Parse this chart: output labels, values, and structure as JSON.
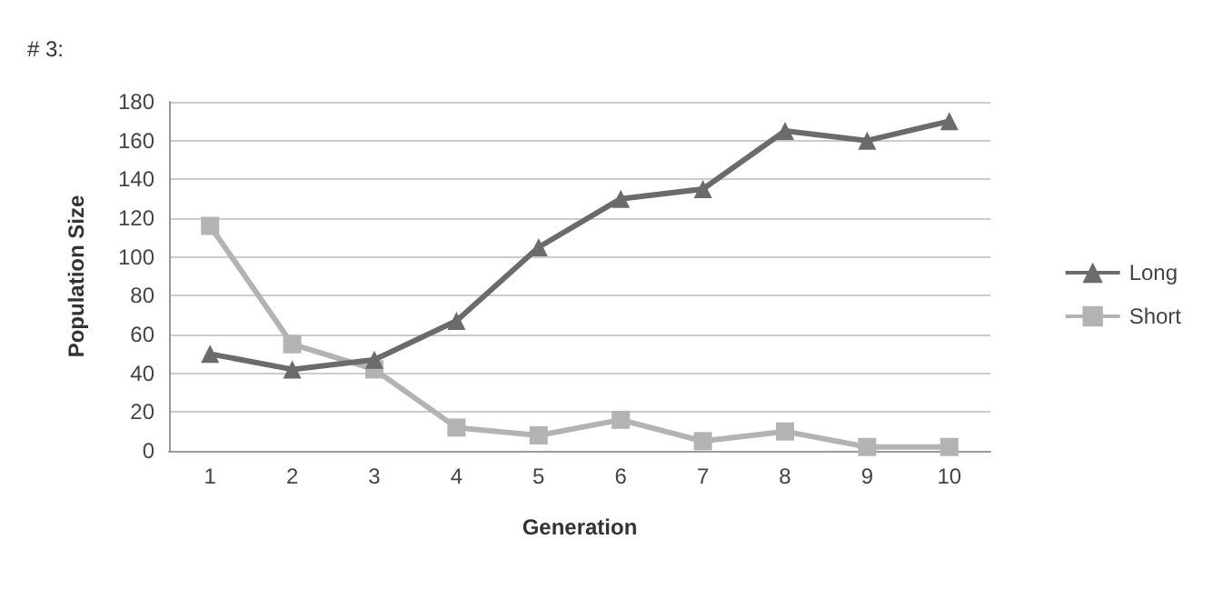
{
  "chart_data": {
    "type": "line",
    "title": "# 3:",
    "xlabel": "Generation",
    "ylabel": "Population Size",
    "categories": [
      "1",
      "2",
      "3",
      "4",
      "5",
      "6",
      "7",
      "8",
      "9",
      "10"
    ],
    "series": [
      {
        "name": "Long",
        "color": "#6b6b6b",
        "marker": "triangle",
        "values": [
          50,
          42,
          47,
          67,
          105,
          130,
          135,
          165,
          160,
          170
        ]
      },
      {
        "name": "Short",
        "color": "#b3b3b3",
        "marker": "square",
        "values": [
          116,
          55,
          42,
          12,
          8,
          16,
          5,
          10,
          2,
          2
        ]
      }
    ],
    "ylim": [
      0,
      180
    ],
    "yticks": [
      0,
      20,
      40,
      60,
      80,
      100,
      120,
      140,
      160,
      180
    ],
    "grid": "y",
    "legend": "right",
    "line_style": "solid"
  }
}
